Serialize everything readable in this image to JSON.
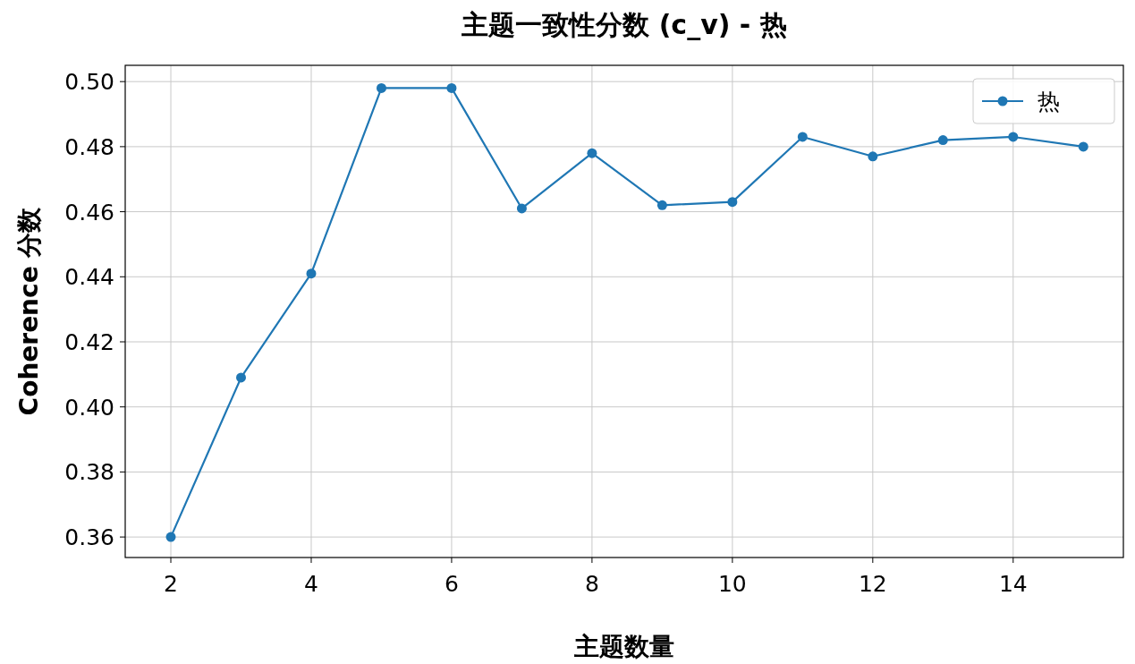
{
  "chart_data": {
    "type": "line",
    "title": "主题一致性分数 (c_v) - 热",
    "xlabel": "主题数量",
    "ylabel": "Coherence 分数",
    "x": [
      2,
      3,
      4,
      5,
      6,
      7,
      8,
      9,
      10,
      11,
      12,
      13,
      14,
      15
    ],
    "series": [
      {
        "name": "热",
        "color": "#1f77b4",
        "values": [
          0.36,
          0.409,
          0.441,
          0.498,
          0.498,
          0.461,
          0.478,
          0.462,
          0.463,
          0.483,
          0.477,
          0.482,
          0.483,
          0.48
        ]
      }
    ],
    "xlim": [
      1.35,
      15.57
    ],
    "ylim": [
      0.3537,
      0.505
    ],
    "xticks": [
      2,
      4,
      6,
      8,
      10,
      12,
      14
    ],
    "yticks": [
      {
        "value": 0.36,
        "label": "0.36"
      },
      {
        "value": 0.38,
        "label": "0.38"
      },
      {
        "value": 0.4,
        "label": "0.40"
      },
      {
        "value": 0.42,
        "label": "0.42"
      },
      {
        "value": 0.44,
        "label": "0.44"
      },
      {
        "value": 0.46,
        "label": "0.46"
      },
      {
        "value": 0.48,
        "label": "0.48"
      },
      {
        "value": 0.5,
        "label": "0.50"
      }
    ],
    "grid": true,
    "legend": "top right",
    "marker": "circle",
    "line_style": "solid"
  }
}
